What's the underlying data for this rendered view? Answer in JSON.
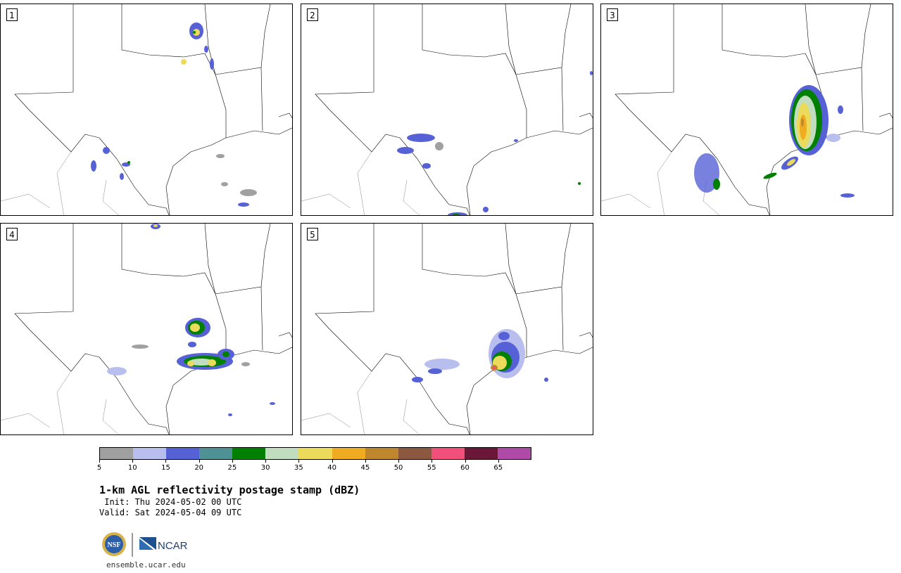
{
  "panels": [
    {
      "label": "1"
    },
    {
      "label": "2"
    },
    {
      "label": "3"
    },
    {
      "label": "4"
    },
    {
      "label": "5"
    }
  ],
  "colorbar": {
    "colors": [
      "#a0a0a0",
      "#b8bfee",
      "#5661d6",
      "#4f9295",
      "#008000",
      "#c1ddc0",
      "#ecda5b",
      "#f0ac20",
      "#c0862e",
      "#8c5840",
      "#f24f7a",
      "#6a1738",
      "#b04aa8"
    ],
    "tick_labels": [
      "5",
      "10",
      "15",
      "20",
      "25",
      "30",
      "35",
      "40",
      "45",
      "50",
      "55",
      "60",
      "65"
    ]
  },
  "title": "1-km AGL reflectivity postage stamp (dBZ)",
  "init_text": " Init: Thu 2024-05-02 00 UTC",
  "valid_text": "Valid: Sat 2024-05-04 09 UTC",
  "logos": {
    "nsf_label": "NSF",
    "ncar_label": "NCAR"
  },
  "site": "ensemble.ucar.edu"
}
